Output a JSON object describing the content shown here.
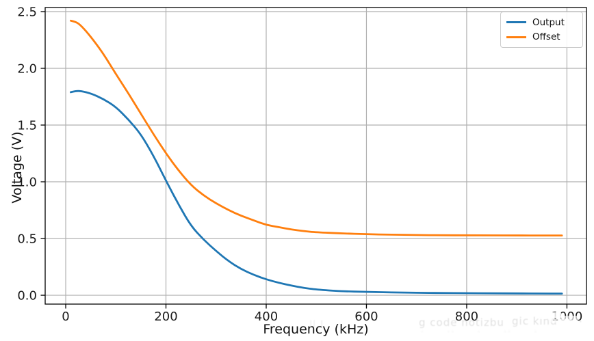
{
  "chart_data": {
    "type": "line",
    "title": "",
    "xlabel": "Frequency (kHz)",
    "ylabel": "Voltage (V)",
    "grid": true,
    "legend_position": "upper right",
    "xlim": [
      -41,
      1039
    ],
    "ylim": [
      -0.078,
      2.536
    ],
    "x_ticks": {
      "values": [
        0,
        200,
        400,
        600,
        800,
        1000
      ],
      "labels": [
        "0",
        "200",
        "400",
        "600",
        "800",
        "1000"
      ]
    },
    "y_ticks": {
      "values": [
        0.0,
        0.5,
        1.0,
        1.5,
        2.0,
        2.5
      ],
      "labels": [
        "0.0",
        "0.5",
        "1.0",
        "1.5",
        "2.0",
        "2.5"
      ]
    },
    "x": [
      10,
      20,
      30,
      50,
      75,
      100,
      125,
      150,
      175,
      200,
      225,
      250,
      275,
      300,
      325,
      350,
      375,
      400,
      425,
      450,
      475,
      500,
      550,
      600,
      650,
      700,
      750,
      800,
      850,
      900,
      950,
      990
    ],
    "series": [
      {
        "name": "Output",
        "color": "#1f77b4",
        "values": [
          1.79,
          1.8,
          1.8,
          1.78,
          1.73,
          1.66,
          1.55,
          1.42,
          1.23,
          1.01,
          0.8,
          0.61,
          0.49,
          0.39,
          0.3,
          0.23,
          0.18,
          0.14,
          0.11,
          0.085,
          0.065,
          0.05,
          0.035,
          0.03,
          0.025,
          0.022,
          0.02,
          0.018,
          0.017,
          0.016,
          0.015,
          0.015
        ]
      },
      {
        "name": "Offset",
        "color": "#ff7f0e",
        "values": [
          2.42,
          2.41,
          2.38,
          2.28,
          2.13,
          1.95,
          1.78,
          1.6,
          1.42,
          1.25,
          1.1,
          0.97,
          0.88,
          0.81,
          0.75,
          0.7,
          0.66,
          0.62,
          0.6,
          0.58,
          0.565,
          0.555,
          0.545,
          0.538,
          0.534,
          0.531,
          0.529,
          0.528,
          0.528,
          0.527,
          0.527,
          0.527
        ]
      }
    ]
  },
  "colors": {
    "grid": "#b0b0b0",
    "spine": "#000000",
    "text": "#1a1a1a",
    "output_line": "#1f77b4",
    "offset_line": "#ff7f0e"
  },
  "watermark": {
    "fragments": [
      "ll l",
      "g code notizbu",
      "gic kind",
      "·"
    ],
    "row2": "· ·· · ·· ·"
  }
}
